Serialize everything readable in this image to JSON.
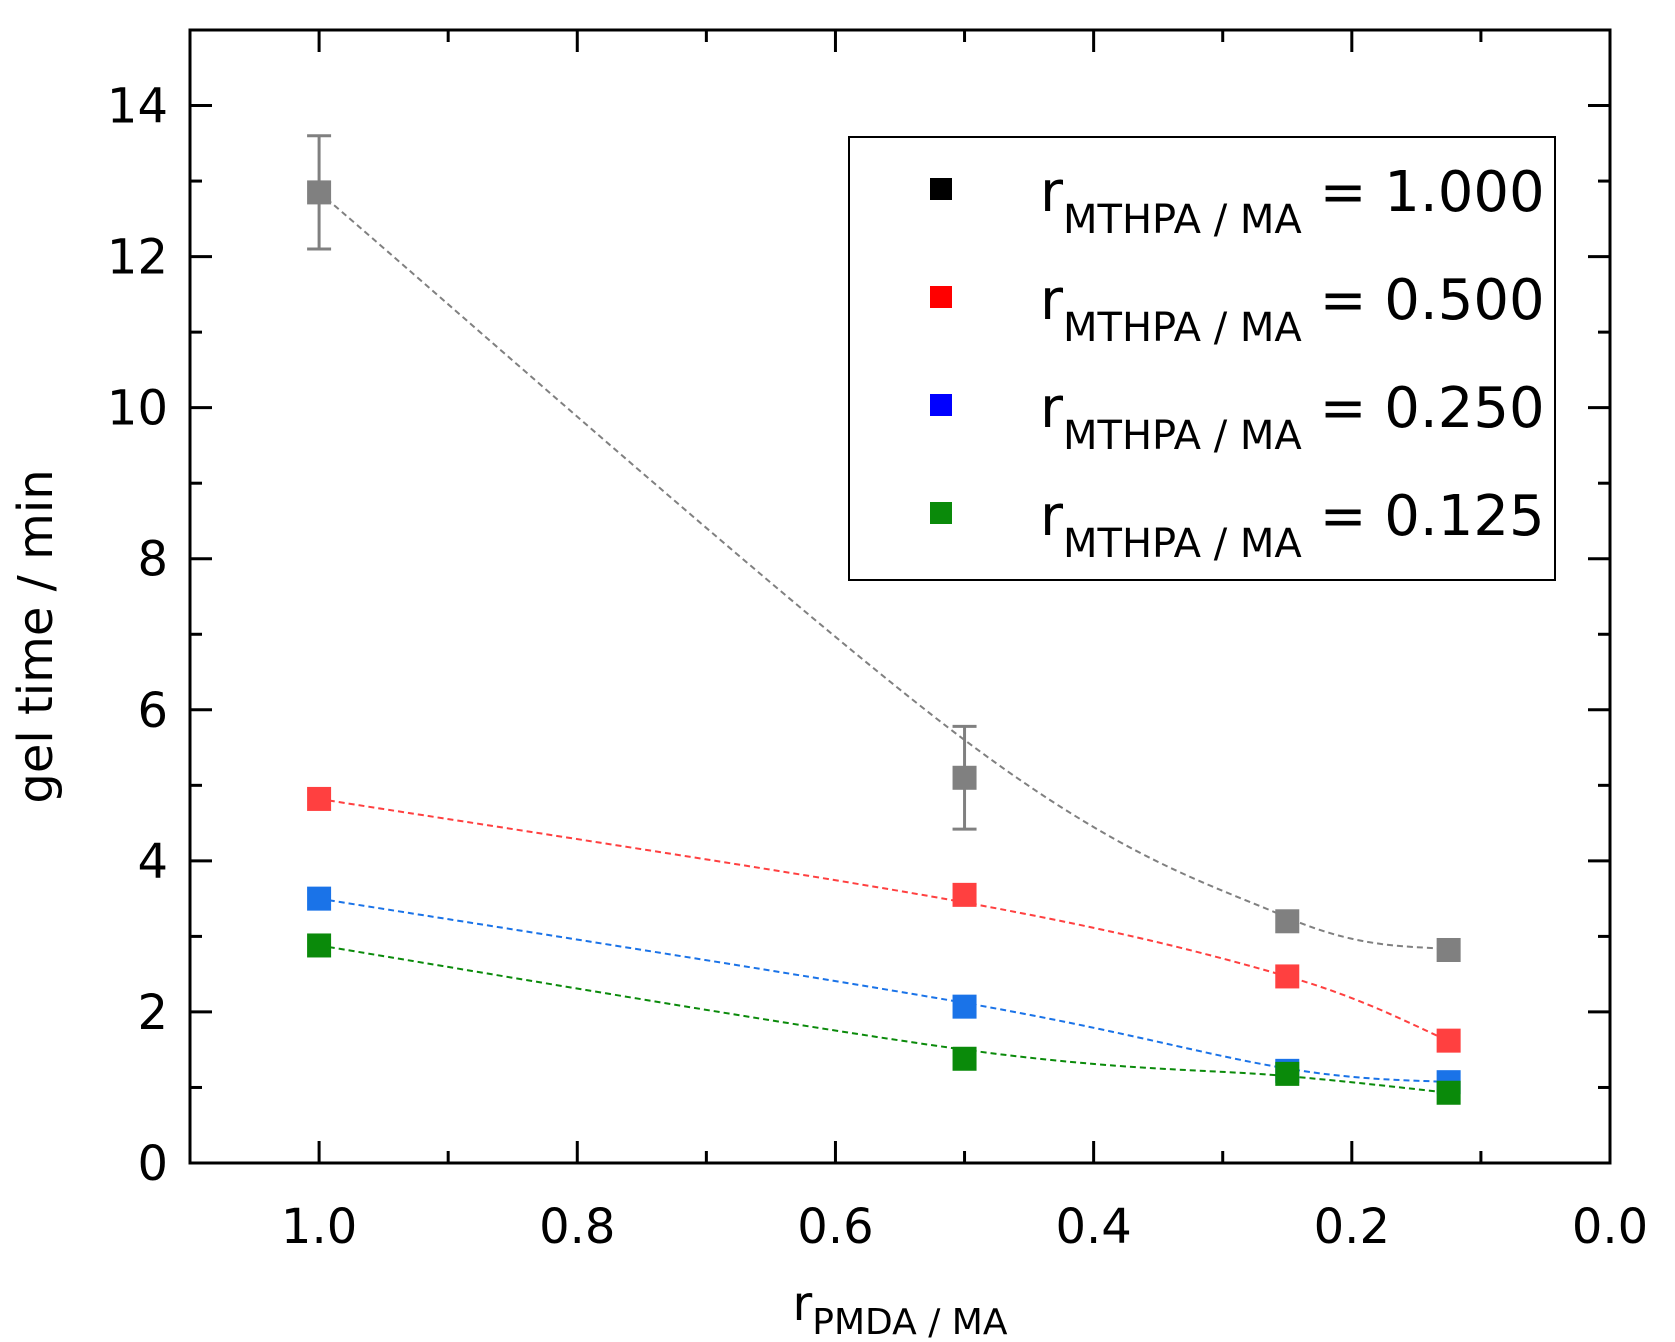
{
  "chart_data": {
    "type": "scatter",
    "title": "",
    "xlabel": {
      "main": "r",
      "sub": "PMDA / MA"
    },
    "ylabel": "gel time / min",
    "xlim": [
      1.1,
      0.0
    ],
    "ylim": [
      0,
      15
    ],
    "x_reversed": true,
    "x_ticks": [
      1.0,
      0.8,
      0.6,
      0.4,
      0.2,
      0.0
    ],
    "x_tick_labels": [
      "1.0",
      "0.8",
      "0.6",
      "0.4",
      "0.2",
      "0.0"
    ],
    "y_ticks": [
      0,
      2,
      4,
      6,
      8,
      10,
      12,
      14
    ],
    "y_tick_labels": [
      "0",
      "2",
      "4",
      "6",
      "8",
      "10",
      "12",
      "14"
    ],
    "legend_position": "top-right",
    "grid": false,
    "series": [
      {
        "name": "r MTHPA / MA = 1.000",
        "legend_main": "r",
        "legend_sub": "MTHPA / MA",
        "legend_value": " = 1.000",
        "color": "#808080",
        "legend_color": "#000000",
        "x": [
          1.0,
          0.5,
          0.25,
          0.125
        ],
        "y": [
          12.85,
          5.1,
          3.2,
          2.82
        ],
        "error": [
          0.75,
          0.68,
          null,
          null
        ],
        "fit_y": [
          12.85,
          5.6,
          3.25,
          2.82
        ]
      },
      {
        "name": "r MTHPA / MA = 0.500",
        "legend_main": "r",
        "legend_sub": "MTHPA / MA",
        "legend_value": " = 0.500",
        "color": "#ff4040",
        "legend_color": "#ff0000",
        "x": [
          1.0,
          0.5,
          0.25,
          0.125
        ],
        "y": [
          4.82,
          3.55,
          2.47,
          1.62
        ],
        "error": [
          null,
          null,
          null,
          null
        ],
        "fit_y": [
          4.82,
          3.45,
          2.47,
          1.62
        ]
      },
      {
        "name": "r MTHPA / MA = 0.250",
        "legend_main": "r",
        "legend_sub": "MTHPA / MA",
        "legend_value": " = 0.250",
        "color": "#1a73e8",
        "legend_color": "#0000ff",
        "x": [
          1.0,
          0.5,
          0.25,
          0.125
        ],
        "y": [
          3.5,
          2.07,
          1.22,
          1.07
        ],
        "error": [
          null,
          null,
          null,
          null
        ],
        "fit_y": [
          3.5,
          2.12,
          1.25,
          1.07
        ]
      },
      {
        "name": "r MTHPA / MA = 0.125",
        "legend_main": "r",
        "legend_sub": "MTHPA / MA",
        "legend_value": " = 0.125",
        "color": "#0a8a0a",
        "legend_color": "#0a8a0a",
        "x": [
          1.0,
          0.5,
          0.25,
          0.125
        ],
        "y": [
          2.88,
          1.38,
          1.18,
          0.93
        ],
        "error": [
          null,
          null,
          null,
          null
        ],
        "fit_y": [
          2.88,
          1.5,
          1.15,
          0.93
        ]
      }
    ]
  }
}
